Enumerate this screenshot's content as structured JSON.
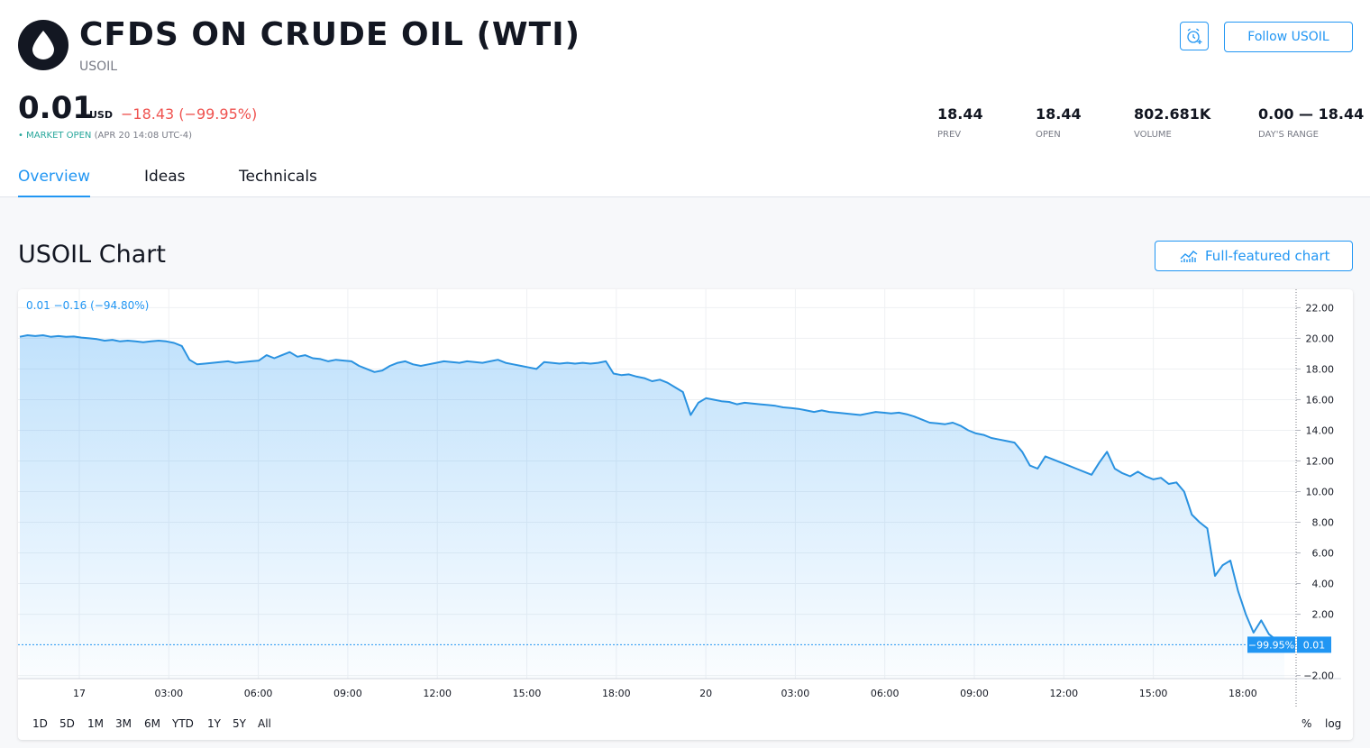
{
  "header": {
    "title": "CFDS ON CRUDE OIL (WTI)",
    "ticker": "USOIL",
    "follow_label": "Follow USOIL",
    "icons": {
      "logo": "oil-drop-icon",
      "alert": "alarm-clock-plus-icon"
    }
  },
  "quote": {
    "price": "0.01",
    "currency": "USD",
    "change": "−18.43 (−99.95%)",
    "status_dot": "•",
    "status_open": "MARKET OPEN",
    "status_time": "(APR 20 14:08 UTC-4)"
  },
  "stats": [
    {
      "value": "18.44",
      "label": "PREV"
    },
    {
      "value": "18.44",
      "label": "OPEN"
    },
    {
      "value": "802.681K",
      "label": "VOLUME"
    },
    {
      "value": "0.00 — 18.44",
      "label": "DAY'S RANGE"
    }
  ],
  "tabs": [
    {
      "label": "Overview",
      "active": true
    },
    {
      "label": "Ideas",
      "active": false
    },
    {
      "label": "Technicals",
      "active": false
    }
  ],
  "section": {
    "title": "USOIL Chart",
    "full_chart_label": "Full-featured chart"
  },
  "colors": {
    "accent": "#2196f3",
    "negative": "#ef5350",
    "positive": "#26a69a",
    "line": "#2a92e0"
  },
  "chart_data": {
    "type": "area",
    "legend_text": "0.01  −0.16 (−94.80%)",
    "x_ticks": [
      "17",
      "03:00",
      "06:00",
      "09:00",
      "12:00",
      "15:00",
      "18:00",
      "20",
      "03:00",
      "06:00",
      "09:00",
      "12:00",
      "15:00",
      "18:00"
    ],
    "y_ticks": [
      "22.00",
      "20.00",
      "18.00",
      "16.00",
      "14.00",
      "12.00",
      "10.00",
      "8.00",
      "6.00",
      "4.00",
      "2.00",
      "−2.00"
    ],
    "ylim": [
      -2.2,
      23.2
    ],
    "last_percent_label": "−99.95%",
    "last_value_label": "0.01",
    "last_value": 0.01,
    "series": [
      {
        "values": [
          20.1,
          20.2,
          20.15,
          20.2,
          20.1,
          20.15,
          20.1,
          20.12,
          20.05,
          20.0,
          19.95,
          19.85,
          19.9,
          19.8,
          19.85,
          19.8,
          19.75,
          19.8,
          19.85,
          19.8,
          19.7,
          19.5,
          18.6,
          18.3,
          18.35,
          18.4,
          18.45,
          18.5,
          18.4,
          18.45,
          18.5,
          18.55,
          18.9,
          18.7,
          18.9,
          19.1,
          18.8,
          18.9,
          18.7,
          18.65,
          18.5,
          18.6,
          18.55,
          18.5,
          18.2,
          18.0,
          17.8,
          17.9,
          18.2,
          18.4,
          18.5,
          18.3,
          18.2,
          18.3,
          18.4,
          18.5,
          18.45,
          18.4,
          18.5,
          18.45,
          18.4,
          18.5,
          18.6,
          18.4,
          18.3,
          18.2,
          18.1,
          18.0,
          18.45,
          18.4,
          18.35,
          18.4,
          18.35,
          18.4,
          18.35,
          18.4,
          18.5,
          17.7,
          17.6,
          17.65,
          17.5,
          17.4,
          17.2,
          17.3,
          17.1,
          16.8,
          16.5,
          15.0,
          15.8,
          16.1,
          16.0,
          15.9,
          15.85,
          15.7,
          15.8,
          15.75,
          15.7,
          15.65,
          15.6,
          15.5,
          15.45,
          15.4,
          15.3,
          15.2,
          15.3,
          15.2,
          15.15,
          15.1,
          15.05,
          15.0,
          15.1,
          15.2,
          15.15,
          15.1,
          15.15,
          15.05,
          14.9,
          14.7,
          14.5,
          14.45,
          14.4,
          14.5,
          14.3,
          14.0,
          13.8,
          13.7,
          13.5,
          13.4,
          13.3,
          13.2,
          12.6,
          11.7,
          11.5,
          12.3,
          12.1,
          11.9,
          11.7,
          11.5,
          11.3,
          11.1,
          11.9,
          12.6,
          11.5,
          11.2,
          11.0,
          11.3,
          11.0,
          10.8,
          10.9,
          10.5,
          10.6,
          10.0,
          8.5,
          8.0,
          7.6,
          4.5,
          5.2,
          5.5,
          3.5,
          2.0,
          0.8,
          1.6,
          0.7,
          0.3,
          0.01
        ]
      }
    ]
  },
  "ranges": [
    "1D",
    "5D",
    "1M",
    "3M",
    "6M",
    "YTD",
    "1Y",
    "5Y",
    "All"
  ],
  "scale_options": [
    "%",
    "log"
  ]
}
